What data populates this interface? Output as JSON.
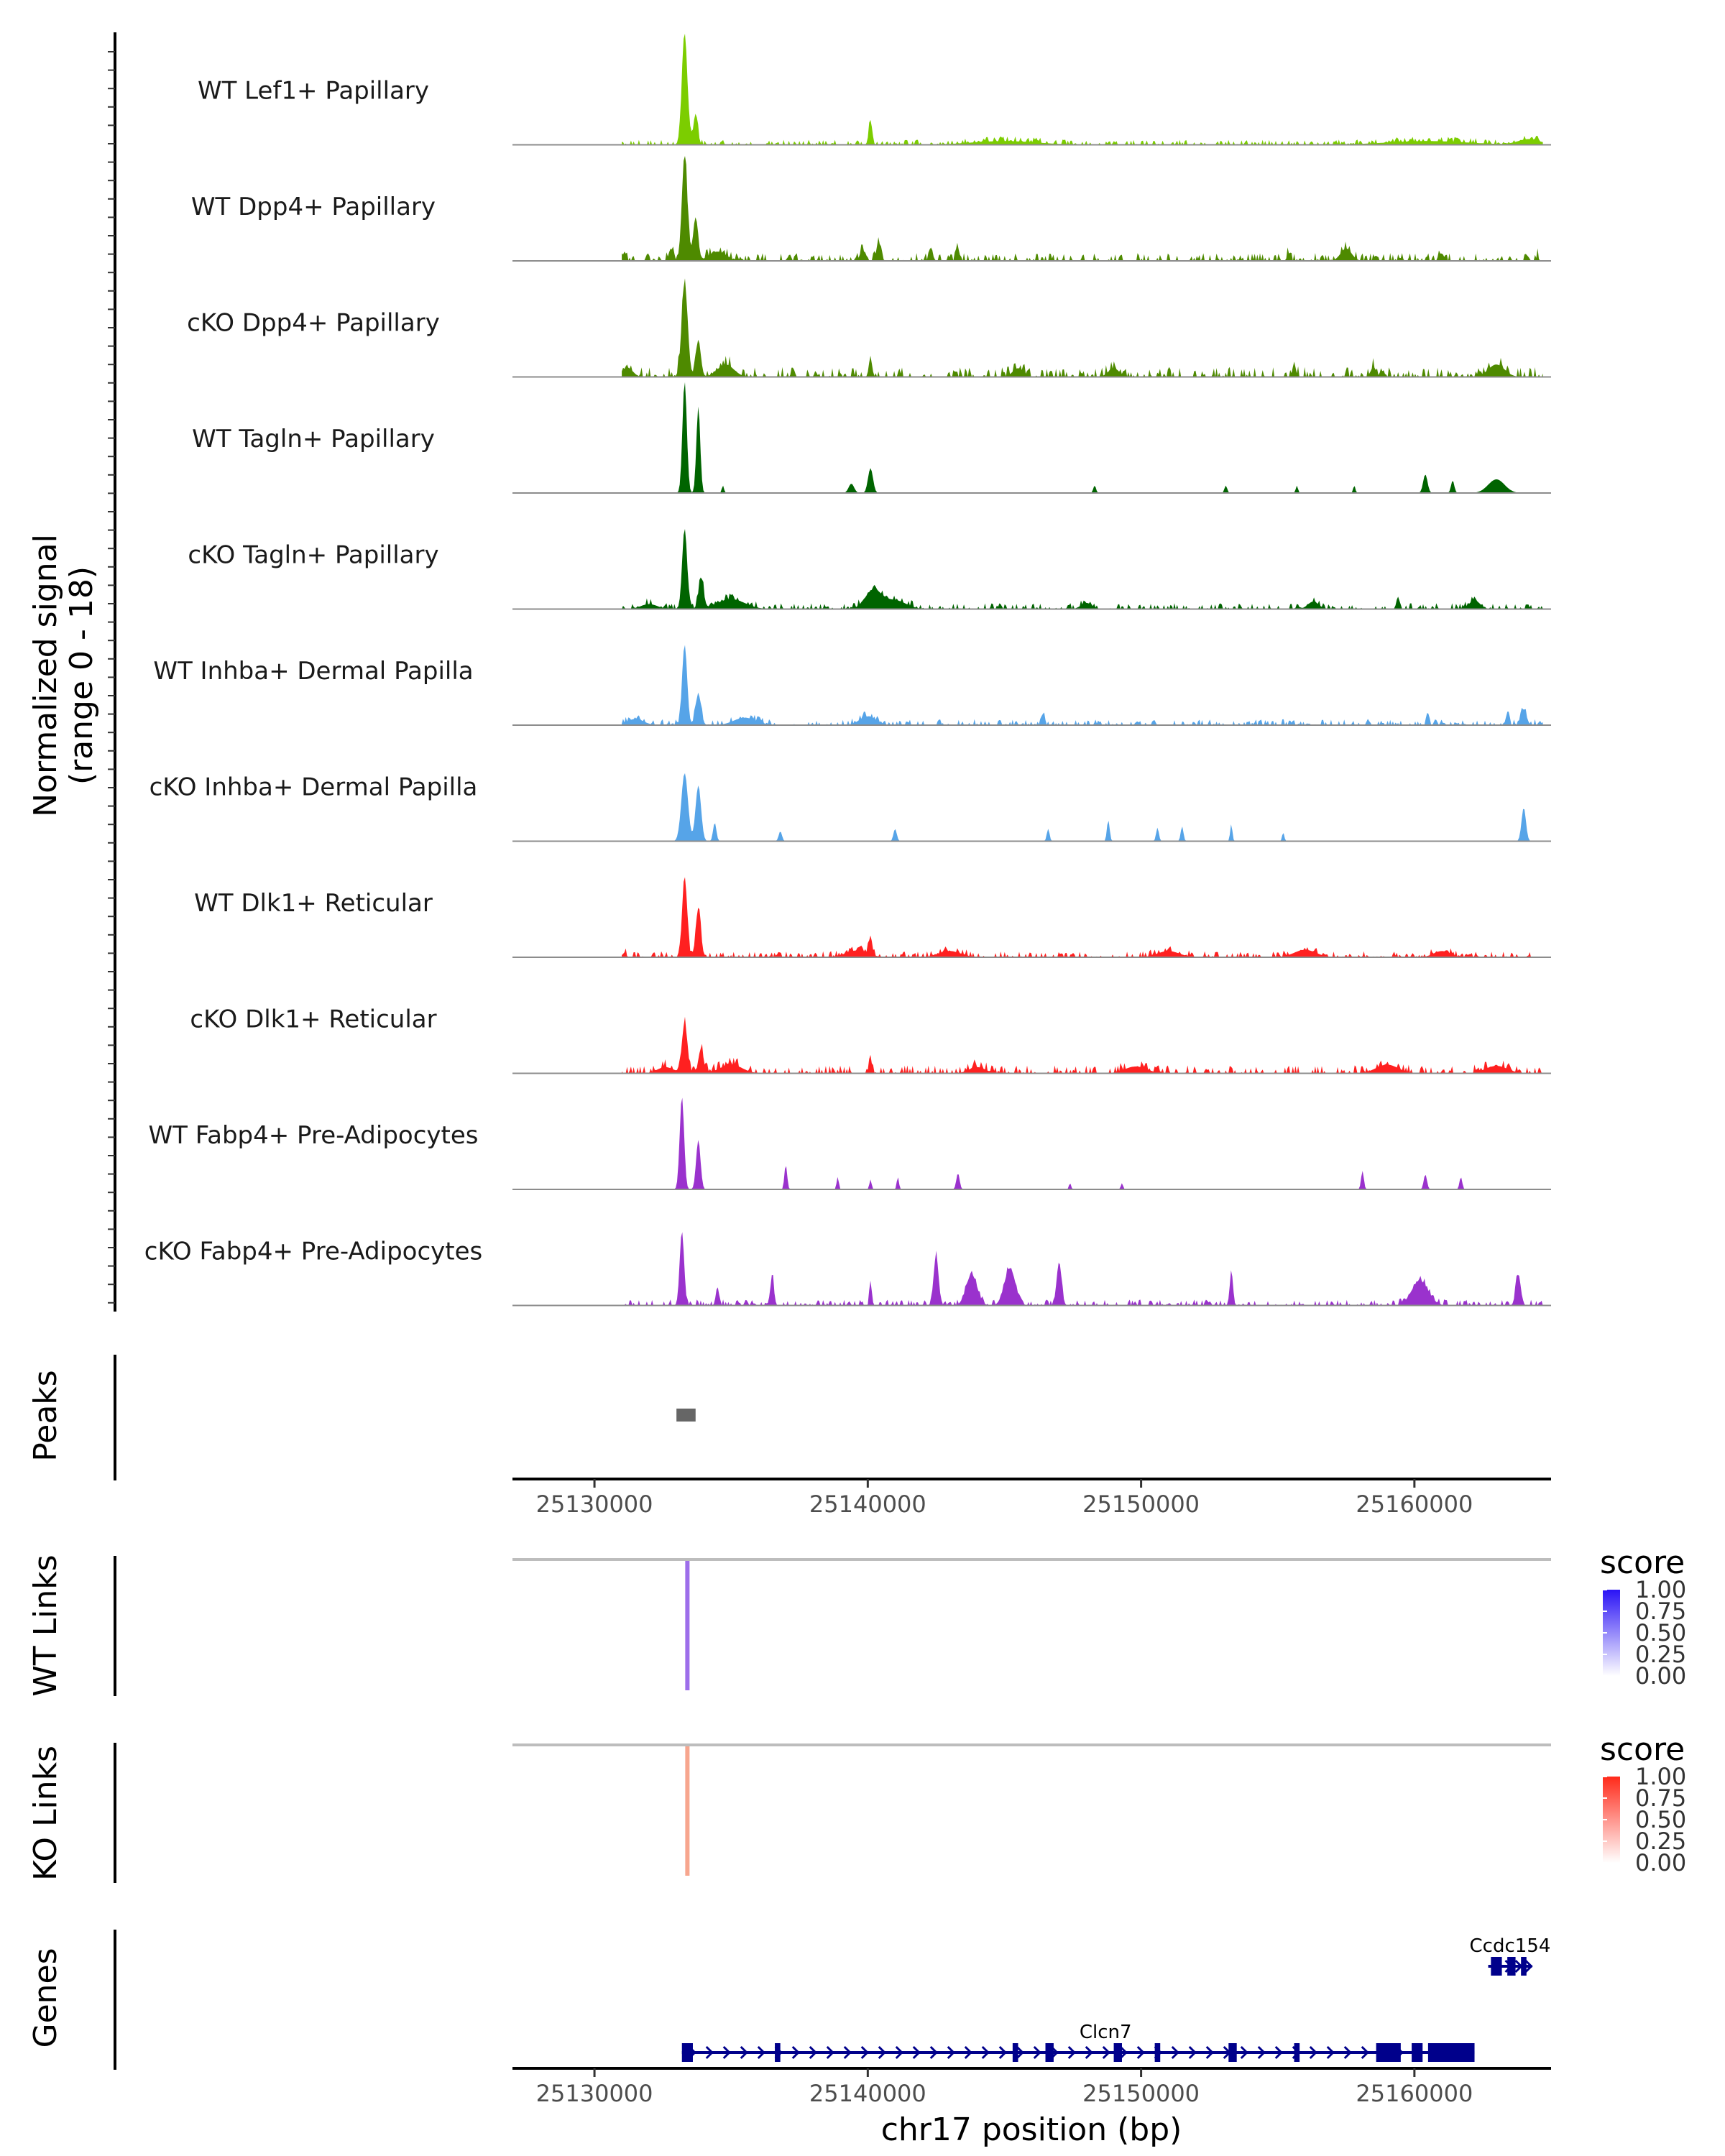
{
  "chart_data": {
    "type": "coverage-plot",
    "x_range": [
      25127000,
      25165000
    ],
    "x_ticks": [
      25130000,
      25140000,
      25150000,
      25160000
    ],
    "x_tick_labels": [
      "25130000",
      "25140000",
      "25150000",
      "25160000"
    ],
    "xlabel": "chr17 position (bp)",
    "signal": {
      "ylabel_line1": "Normalized signal",
      "ylabel_line2": "(range 0 - 18)",
      "ylim": [
        0,
        18
      ],
      "tracks": [
        {
          "name": "WT Lef1+ Papillary",
          "color": "#7CCD00",
          "peaks": [
            [
              25133300,
              18,
              100
            ],
            [
              25133700,
              5,
              80
            ],
            [
              25140100,
              4,
              60
            ],
            [
              25145000,
              0.6,
              1200
            ],
            [
              25160500,
              0.6,
              1500
            ],
            [
              25164200,
              0.9,
              400
            ]
          ],
          "noise": 0.5
        },
        {
          "name": "WT Dpp4+ Papillary",
          "color": "#4E8A00",
          "peaks": [
            [
              25131100,
              1.5,
              60
            ],
            [
              25132800,
              2,
              80
            ],
            [
              25133300,
              17,
              100
            ],
            [
              25133700,
              7,
              90
            ],
            [
              25134500,
              1.5,
              300
            ],
            [
              25139800,
              2,
              80
            ],
            [
              25140400,
              3,
              80
            ],
            [
              25142300,
              2.2,
              60
            ],
            [
              25143300,
              2,
              60
            ],
            [
              25155400,
              1.2,
              60
            ],
            [
              25157500,
              2,
              200
            ],
            [
              25161000,
              1.2,
              80
            ],
            [
              25164500,
              0.8,
              40
            ]
          ],
          "noise": 0.8
        },
        {
          "name": "cKO Dpp4+ Papillary",
          "color": "#4E8A00",
          "peaks": [
            [
              25131200,
              1.5,
              200
            ],
            [
              25133300,
              15,
              110
            ],
            [
              25133800,
              6,
              90
            ],
            [
              25134800,
              2,
              300
            ],
            [
              25140100,
              3,
              60
            ],
            [
              25145500,
              1.4,
              200
            ],
            [
              25149000,
              1.4,
              200
            ],
            [
              25155600,
              2.2,
              60
            ],
            [
              25158500,
              1.6,
              100
            ],
            [
              25163000,
              2,
              300
            ]
          ],
          "noise": 1.0
        },
        {
          "name": "WT Tagln+ Papillary",
          "color": "#006400",
          "peaks": [
            [
              25133300,
              18,
              80
            ],
            [
              25133800,
              14,
              70
            ],
            [
              25134700,
              1.2,
              40
            ],
            [
              25139400,
              1.5,
              100
            ],
            [
              25140100,
              4,
              90
            ],
            [
              25148300,
              1.2,
              50
            ],
            [
              25153100,
              1.2,
              50
            ],
            [
              25155700,
              1.2,
              40
            ],
            [
              25157800,
              1.2,
              40
            ],
            [
              25160400,
              3,
              80
            ],
            [
              25161400,
              2,
              60
            ],
            [
              25163000,
              2.2,
              300
            ]
          ],
          "noise": 0.0
        },
        {
          "name": "cKO Tagln+ Papillary",
          "color": "#006400",
          "peaks": [
            [
              25132000,
              0.8,
              300
            ],
            [
              25133300,
              13,
              90
            ],
            [
              25133900,
              5,
              90
            ],
            [
              25135000,
              1.6,
              500
            ],
            [
              25140200,
              3,
              300
            ],
            [
              25141000,
              1.4,
              400
            ],
            [
              25148000,
              1,
              200
            ],
            [
              25156300,
              1.2,
              200
            ],
            [
              25159400,
              2,
              60
            ],
            [
              25162200,
              1.4,
              200
            ]
          ],
          "noise": 0.6
        },
        {
          "name": "WT Inhba+ Dermal Papilla",
          "color": "#56A4E8",
          "peaks": [
            [
              25131500,
              1,
              300
            ],
            [
              25133300,
              13,
              90
            ],
            [
              25133800,
              5,
              100
            ],
            [
              25135500,
              1.2,
              400
            ],
            [
              25140000,
              1.4,
              300
            ],
            [
              25146400,
              1.8,
              60
            ],
            [
              25158300,
              1,
              50
            ],
            [
              25160500,
              1.4,
              50
            ],
            [
              25163400,
              1.8,
              60
            ],
            [
              25164000,
              2.6,
              100
            ]
          ],
          "noise": 0.6
        },
        {
          "name": "cKO Inhba+ Dermal Papilla",
          "color": "#56A4E8",
          "peaks": [
            [
              25133300,
              11,
              120
            ],
            [
              25133800,
              9,
              100
            ],
            [
              25134400,
              3,
              60
            ],
            [
              25136800,
              1.6,
              60
            ],
            [
              25141000,
              2,
              60
            ],
            [
              25146600,
              2,
              50
            ],
            [
              25148800,
              3.4,
              50
            ],
            [
              25150600,
              2.2,
              50
            ],
            [
              25151500,
              2.4,
              50
            ],
            [
              25153300,
              2.8,
              40
            ],
            [
              25155200,
              1.4,
              40
            ],
            [
              25164000,
              5.4,
              80
            ]
          ],
          "noise": 0.0
        },
        {
          "name": "WT Dlk1+ Reticular",
          "color": "#FF2020",
          "peaks": [
            [
              25131100,
              0.8,
              60
            ],
            [
              25133300,
              13,
              90
            ],
            [
              25133800,
              8,
              90
            ],
            [
              25139600,
              1.1,
              400
            ],
            [
              25140100,
              3,
              60
            ],
            [
              25143000,
              1,
              400
            ],
            [
              25151000,
              1,
              400
            ],
            [
              25156000,
              1.2,
              400
            ],
            [
              25161000,
              1,
              300
            ]
          ],
          "noise": 0.6
        },
        {
          "name": "cKO Dlk1+ Reticular",
          "color": "#FF2020",
          "peaks": [
            [
              25132600,
              1,
              300
            ],
            [
              25133300,
              8,
              100
            ],
            [
              25133900,
              4,
              90
            ],
            [
              25135000,
              1.4,
              400
            ],
            [
              25140100,
              2.2,
              60
            ],
            [
              25144000,
              1,
              300
            ],
            [
              25149800,
              1.1,
              400
            ],
            [
              25159000,
              1.4,
              400
            ],
            [
              25163000,
              1.2,
              400
            ]
          ],
          "noise": 0.8
        },
        {
          "name": "WT Fabp4+ Pre-Adipocytes",
          "color": "#9A32CD",
          "peaks": [
            [
              25133200,
              15,
              80
            ],
            [
              25133800,
              8,
              80
            ],
            [
              25137000,
              4,
              50
            ],
            [
              25138900,
              2,
              40
            ],
            [
              25140100,
              1.6,
              40
            ],
            [
              25141100,
              2,
              40
            ],
            [
              25143300,
              2.6,
              60
            ],
            [
              25147400,
              1,
              40
            ],
            [
              25149300,
              1,
              40
            ],
            [
              25158100,
              3,
              50
            ],
            [
              25160400,
              2.4,
              60
            ],
            [
              25161700,
              2,
              50
            ]
          ],
          "noise": 0.0
        },
        {
          "name": "cKO Fabp4+ Pre-Adipocytes",
          "color": "#9A32CD",
          "peaks": [
            [
              25133200,
              12,
              80
            ],
            [
              25134500,
              3,
              60
            ],
            [
              25136500,
              5,
              60
            ],
            [
              25140100,
              4,
              40
            ],
            [
              25142500,
              8,
              90
            ],
            [
              25143800,
              5,
              200
            ],
            [
              25145200,
              6,
              200
            ],
            [
              25147000,
              7,
              90
            ],
            [
              25153300,
              5,
              60
            ],
            [
              25160200,
              4,
              300
            ],
            [
              25163800,
              5,
              90
            ]
          ],
          "noise": 0.6
        }
      ]
    },
    "peaks_track": {
      "label": "Peaks",
      "regions": [
        [
          25133000,
          25133700
        ]
      ],
      "color": "#666666"
    },
    "links": [
      {
        "label": "WT Links",
        "color": "#9D6EEA",
        "positions": [
          25133400
        ],
        "scores": [
          0.6
        ],
        "legend": {
          "title": "score",
          "ticks": [
            "1.00",
            "0.75",
            "0.50",
            "0.25",
            "0.00"
          ],
          "low": "#FFFFFF",
          "high": "#2A13F5"
        }
      },
      {
        "label": "KO Links",
        "color": "#F7A68E",
        "positions": [
          25133400
        ],
        "scores": [
          0.4
        ],
        "legend": {
          "title": "score",
          "ticks": [
            "1.00",
            "0.75",
            "0.50",
            "0.25",
            "0.00"
          ],
          "low": "#FFFFFF",
          "high": "#FF2A1A"
        }
      }
    ],
    "genes": {
      "label": "Genes",
      "color": "#00008B",
      "items": [
        {
          "name": "Clcn7",
          "start": 25133200,
          "end": 25162200,
          "row": 1,
          "exons": [
            [
              25133200,
              25133600
            ],
            [
              25136600,
              25136800
            ],
            [
              25145300,
              25145500
            ],
            [
              25146500,
              25146800
            ],
            [
              25149000,
              25149300
            ],
            [
              25150500,
              25150700
            ],
            [
              25153200,
              25153500
            ],
            [
              25155600,
              25155800
            ],
            [
              25158600,
              25159500
            ],
            [
              25159900,
              25160300
            ],
            [
              25160500,
              25162200
            ]
          ]
        },
        {
          "name": "Ccdc154",
          "start": 25162700,
          "end": 25164300,
          "row": 0,
          "exons": [
            [
              25162800,
              25163200
            ],
            [
              25163400,
              25163700
            ],
            [
              25163900,
              25164100
            ]
          ]
        }
      ]
    }
  }
}
